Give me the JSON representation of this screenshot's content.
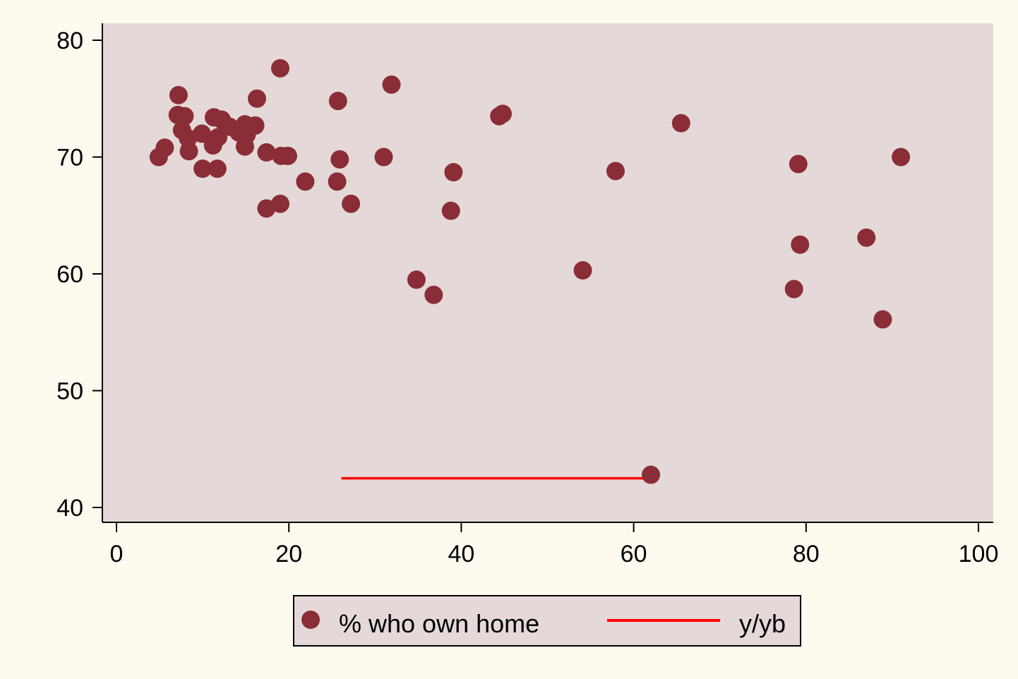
{
  "chart_data": {
    "type": "scatter",
    "title": "",
    "xlabel": "",
    "ylabel": "",
    "xlim": [
      0,
      100
    ],
    "ylim": [
      40,
      80
    ],
    "xticks": [
      "0",
      "20",
      "40",
      "60",
      "80",
      "100"
    ],
    "yticks": [
      "40",
      "50",
      "60",
      "70",
      "80"
    ],
    "grid": false,
    "legend_position": "bottom",
    "colors": {
      "page_background": "#fffaf0",
      "plot_background": "#e4d9d8",
      "marker": "#8b2d36",
      "line": "#ff0000"
    },
    "series": [
      {
        "name": "% who own home",
        "type": "scatter",
        "points": [
          [
            4.9,
            70.0
          ],
          [
            5.6,
            70.8
          ],
          [
            7.2,
            75.3
          ],
          [
            7.1,
            73.6
          ],
          [
            7.9,
            73.5
          ],
          [
            7.6,
            72.3
          ],
          [
            8.3,
            71.6
          ],
          [
            8.4,
            70.5
          ],
          [
            9.9,
            72.0
          ],
          [
            10.0,
            69.0
          ],
          [
            11.3,
            73.4
          ],
          [
            11.2,
            71.0
          ],
          [
            11.8,
            71.7
          ],
          [
            12.2,
            73.2
          ],
          [
            11.7,
            69.0
          ],
          [
            13.1,
            72.6
          ],
          [
            14.2,
            72.1
          ],
          [
            14.9,
            72.8
          ],
          [
            15.1,
            71.9
          ],
          [
            14.9,
            70.9
          ],
          [
            16.1,
            72.7
          ],
          [
            16.3,
            75.0
          ],
          [
            17.4,
            70.4
          ],
          [
            17.4,
            65.6
          ],
          [
            19.0,
            77.6
          ],
          [
            19.1,
            70.1
          ],
          [
            19.9,
            70.1
          ],
          [
            19.0,
            66.0
          ],
          [
            21.9,
            67.9
          ],
          [
            25.7,
            74.8
          ],
          [
            25.9,
            69.8
          ],
          [
            25.6,
            67.9
          ],
          [
            27.2,
            66.0
          ],
          [
            31.0,
            70.0
          ],
          [
            31.9,
            76.2
          ],
          [
            34.8,
            59.5
          ],
          [
            36.8,
            58.2
          ],
          [
            38.8,
            65.4
          ],
          [
            39.1,
            68.7
          ],
          [
            44.4,
            73.5
          ],
          [
            44.8,
            73.7
          ],
          [
            54.1,
            60.3
          ],
          [
            57.9,
            68.8
          ],
          [
            65.5,
            72.9
          ],
          [
            62.0,
            42.8
          ],
          [
            79.1,
            69.4
          ],
          [
            79.3,
            62.5
          ],
          [
            78.6,
            58.7
          ],
          [
            87.0,
            63.1
          ],
          [
            88.9,
            56.1
          ],
          [
            91.0,
            70.0
          ]
        ]
      },
      {
        "name": "y/yb",
        "type": "line",
        "points": [
          [
            26.1,
            42.5
          ],
          [
            61.4,
            42.5
          ]
        ]
      }
    ]
  }
}
